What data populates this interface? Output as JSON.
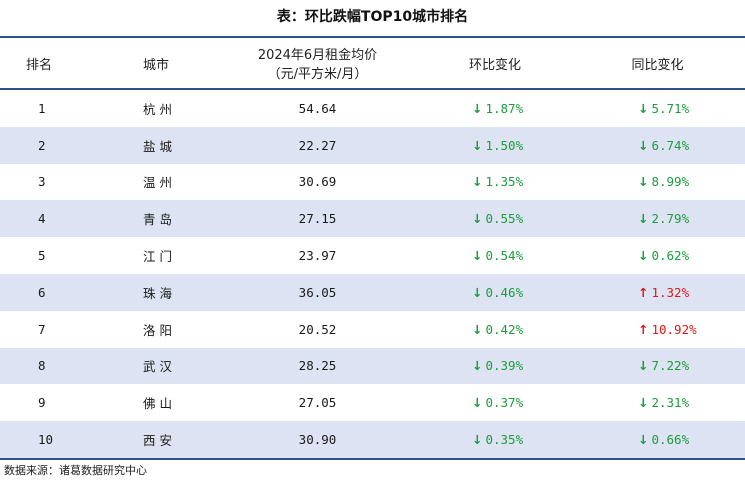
{
  "title": "表：环比跌幅TOP10城市排名",
  "headers": {
    "rank": "排名",
    "city": "城市",
    "rent_line1": "2024年6月租金均价",
    "rent_line2": "（元/平方米/月）",
    "mom": "环比变化",
    "yoy": "同比变化"
  },
  "colors": {
    "header_rule": "#2f4f8f",
    "row_alt": "#dde3f3",
    "down": "#1a9e3a",
    "up": "#e01818"
  },
  "icons": {
    "down": "down-arrow-icon",
    "up": "up-arrow-icon"
  },
  "rows": [
    {
      "rank": "1",
      "city": "杭州",
      "rent": "54.64",
      "mom": "1.87%",
      "mom_dir": "down",
      "yoy": "5.71%",
      "yoy_dir": "down"
    },
    {
      "rank": "2",
      "city": "盐城",
      "rent": "22.27",
      "mom": "1.50%",
      "mom_dir": "down",
      "yoy": "6.74%",
      "yoy_dir": "down"
    },
    {
      "rank": "3",
      "city": "温州",
      "rent": "30.69",
      "mom": "1.35%",
      "mom_dir": "down",
      "yoy": "8.99%",
      "yoy_dir": "down"
    },
    {
      "rank": "4",
      "city": "青岛",
      "rent": "27.15",
      "mom": "0.55%",
      "mom_dir": "down",
      "yoy": "2.79%",
      "yoy_dir": "down"
    },
    {
      "rank": "5",
      "city": "江门",
      "rent": "23.97",
      "mom": "0.54%",
      "mom_dir": "down",
      "yoy": "0.62%",
      "yoy_dir": "down"
    },
    {
      "rank": "6",
      "city": "珠海",
      "rent": "36.05",
      "mom": "0.46%",
      "mom_dir": "down",
      "yoy": "1.32%",
      "yoy_dir": "up"
    },
    {
      "rank": "7",
      "city": "洛阳",
      "rent": "20.52",
      "mom": "0.42%",
      "mom_dir": "down",
      "yoy": "10.92%",
      "yoy_dir": "up"
    },
    {
      "rank": "8",
      "city": "武汉",
      "rent": "28.25",
      "mom": "0.39%",
      "mom_dir": "down",
      "yoy": "7.22%",
      "yoy_dir": "down"
    },
    {
      "rank": "9",
      "city": "佛山",
      "rent": "27.05",
      "mom": "0.37%",
      "mom_dir": "down",
      "yoy": "2.31%",
      "yoy_dir": "down"
    },
    {
      "rank": "10",
      "city": "西安",
      "rent": "30.90",
      "mom": "0.35%",
      "mom_dir": "down",
      "yoy": "0.66%",
      "yoy_dir": "down"
    }
  ],
  "source": "数据来源：诸葛数据研究中心"
}
